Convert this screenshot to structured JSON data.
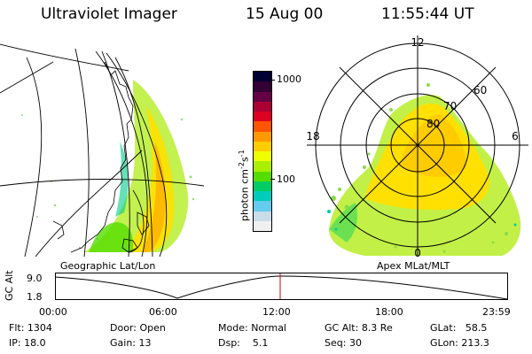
{
  "header": {
    "instrument": "Ultraviolet Imager",
    "date": "15 Aug 00",
    "time": "11:55:44 UT"
  },
  "colorbar": {
    "unit_label": "photon cm",
    "unit_exp1": "-2",
    "unit_s": "s",
    "unit_exp2": "-1",
    "ticks": [
      "1000",
      "100"
    ],
    "colors": [
      "#000033",
      "#330033",
      "#660044",
      "#aa0033",
      "#dd0022",
      "#ff5500",
      "#ff9900",
      "#ffcc00",
      "#eeff00",
      "#aaee00",
      "#55dd00",
      "#00cc66",
      "#00ccbb",
      "#66ccee",
      "#c8dde8",
      "#f0f0f0"
    ]
  },
  "polar": {
    "mlt_labels": [
      "12",
      "18",
      "6",
      "0"
    ],
    "mlat_labels": [
      "60",
      "70",
      "80"
    ]
  },
  "map_labels": {
    "left": "Geographic Lat/Lon",
    "right": "Apex MLat/MLT"
  },
  "altitude_plot": {
    "axis_label": "GC Alt",
    "y_ticks": [
      "9.0",
      "1.8"
    ],
    "x_ticks": [
      "00:00",
      "06:00",
      "12:00",
      "18:00",
      "23:59"
    ],
    "current_time_marker_hours": 11.93
  },
  "info": {
    "flt_label": "Flt:",
    "flt_value": "1304",
    "ip_label": "IP:",
    "ip_value": "18.0",
    "door_label": "Door:",
    "door_value": "Open",
    "gain_label": "Gain:",
    "gain_value": "13",
    "mode_label": "Mode:",
    "mode_value": "Normal",
    "dsp_label": "Dsp:",
    "dsp_value": "5.1",
    "gcalt_label": "GC Alt:",
    "gcalt_value": "8.3 Re",
    "seq_label": "Seq:",
    "seq_value": "30",
    "glat_label": "GLat:",
    "glat_value": "58.5",
    "glon_label": "GLon:",
    "glon_value": "213.3"
  }
}
